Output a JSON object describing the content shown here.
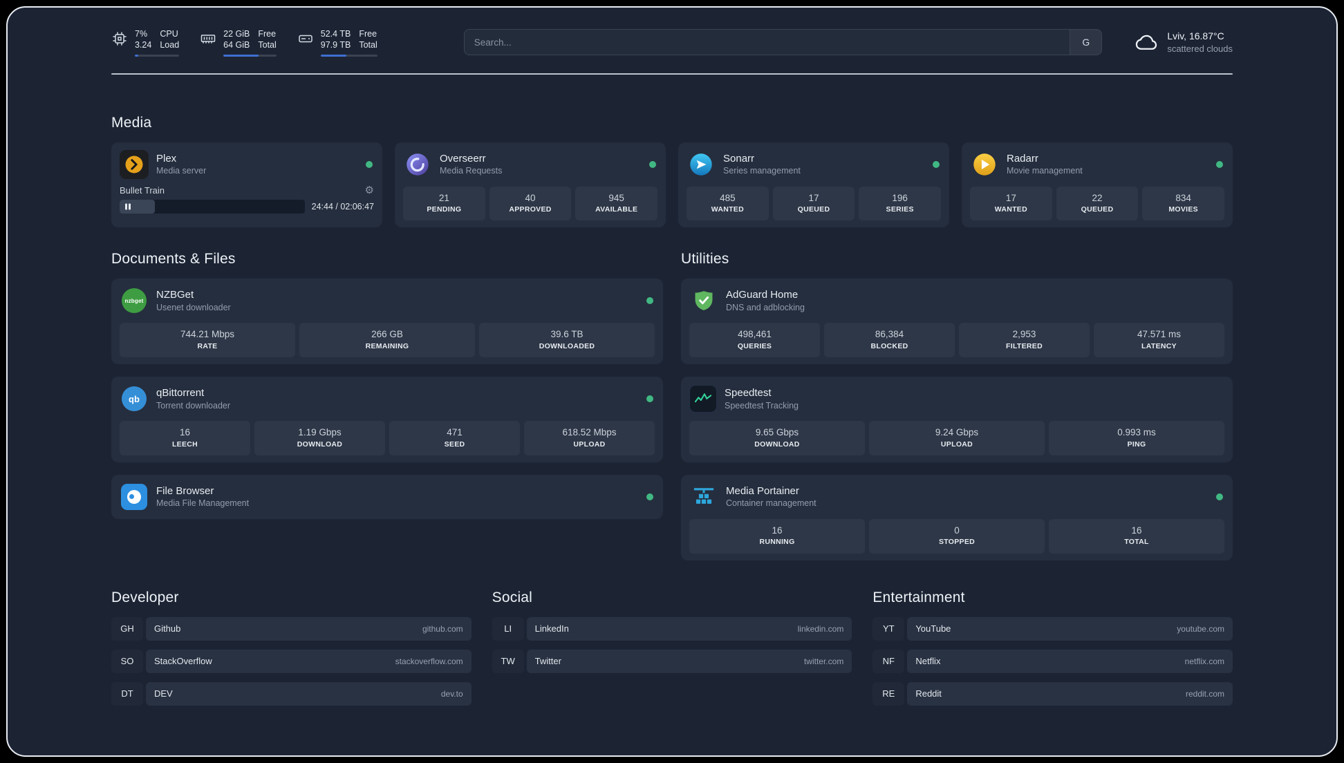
{
  "theme": {
    "background": "#000000",
    "panel_background": "#1c2434",
    "card_background": "#252e3e",
    "stat_background": "#2e3747",
    "accent_blue": "#3f6fd1",
    "status_online": "#41b883",
    "plex_brand": "#e6a11b",
    "text_primary": "#e9edf2",
    "text_secondary": "#929dac"
  },
  "topbar": {
    "resources": [
      {
        "icon": "cpu-icon",
        "value": "7%",
        "value2": "3.24",
        "label": "CPU",
        "label2": "Load",
        "progress_pct": 8
      },
      {
        "icon": "memory-icon",
        "value": "22 GiB",
        "value2": "64 GiB",
        "label": "Free",
        "label2": "Total",
        "progress_pct": 66
      },
      {
        "icon": "disk-icon",
        "value": "52.4 TB",
        "value2": "97.9 TB",
        "label": "Free",
        "label2": "Total",
        "progress_pct": 46
      }
    ],
    "search": {
      "placeholder": "Search...",
      "provider_button": "G"
    },
    "weather": {
      "icon": "cloud-icon",
      "location": "Lviv, 16.87°C",
      "condition": "scattered clouds"
    }
  },
  "sections": {
    "media": {
      "title": "Media",
      "services": [
        {
          "name": "Plex",
          "description": "Media server",
          "icon": "plex-icon",
          "status": "online",
          "now_playing": {
            "title": "Bullet Train",
            "time": "24:44 / 02:06:47",
            "progress_pct": 19
          }
        },
        {
          "name": "Overseerr",
          "description": "Media Requests",
          "icon": "overseerr-icon",
          "status": "online",
          "stats": [
            {
              "value": "21",
              "label": "PENDING"
            },
            {
              "value": "40",
              "label": "APPROVED"
            },
            {
              "value": "945",
              "label": "AVAILABLE"
            }
          ]
        },
        {
          "name": "Sonarr",
          "description": "Series management",
          "icon": "sonarr-icon",
          "status": "online",
          "stats": [
            {
              "value": "485",
              "label": "WANTED"
            },
            {
              "value": "17",
              "label": "QUEUED"
            },
            {
              "value": "196",
              "label": "SERIES"
            }
          ]
        },
        {
          "name": "Radarr",
          "description": "Movie management",
          "icon": "radarr-icon",
          "status": "online",
          "stats": [
            {
              "value": "17",
              "label": "WANTED"
            },
            {
              "value": "22",
              "label": "QUEUED"
            },
            {
              "value": "834",
              "label": "MOVIES"
            }
          ]
        }
      ]
    },
    "documents": {
      "title": "Documents & Files",
      "services": [
        {
          "name": "NZBGet",
          "description": "Usenet downloader",
          "icon": "nzbget-icon",
          "status": "online",
          "stats": [
            {
              "value": "744.21 Mbps",
              "label": "RATE"
            },
            {
              "value": "266 GB",
              "label": "REMAINING"
            },
            {
              "value": "39.6 TB",
              "label": "DOWNLOADED"
            }
          ]
        },
        {
          "name": "qBittorrent",
          "description": "Torrent downloader",
          "icon": "qbittorrent-icon",
          "status": "online",
          "stats": [
            {
              "value": "16",
              "label": "LEECH"
            },
            {
              "value": "1.19 Gbps",
              "label": "DOWNLOAD"
            },
            {
              "value": "471",
              "label": "SEED"
            },
            {
              "value": "618.52 Mbps",
              "label": "UPLOAD"
            }
          ]
        },
        {
          "name": "File Browser",
          "description": "Media File Management",
          "icon": "filebrowser-icon",
          "status": "online",
          "stats": []
        }
      ]
    },
    "utilities": {
      "title": "Utilities",
      "services": [
        {
          "name": "AdGuard Home",
          "description": "DNS and adblocking",
          "icon": "adguard-icon",
          "stats": [
            {
              "value": "498,461",
              "label": "QUERIES"
            },
            {
              "value": "86,384",
              "label": "BLOCKED"
            },
            {
              "value": "2,953",
              "label": "FILTERED"
            },
            {
              "value": "47.571 ms",
              "label": "LATENCY"
            }
          ]
        },
        {
          "name": "Speedtest",
          "description": "Speedtest Tracking",
          "icon": "speedtest-icon",
          "stats": [
            {
              "value": "9.65 Gbps",
              "label": "DOWNLOAD"
            },
            {
              "value": "9.24 Gbps",
              "label": "UPLOAD"
            },
            {
              "value": "0.993 ms",
              "label": "PING"
            }
          ]
        },
        {
          "name": "Media Portainer",
          "description": "Container management",
          "icon": "portainer-icon",
          "status": "online",
          "stats": [
            {
              "value": "16",
              "label": "RUNNING"
            },
            {
              "value": "0",
              "label": "STOPPED"
            },
            {
              "value": "16",
              "label": "TOTAL"
            }
          ]
        }
      ]
    }
  },
  "bookmarks": [
    {
      "title": "Developer",
      "items": [
        {
          "abbr": "GH",
          "name": "Github",
          "domain": "github.com"
        },
        {
          "abbr": "SO",
          "name": "StackOverflow",
          "domain": "stackoverflow.com"
        },
        {
          "abbr": "DT",
          "name": "DEV",
          "domain": "dev.to"
        }
      ]
    },
    {
      "title": "Social",
      "items": [
        {
          "abbr": "LI",
          "name": "LinkedIn",
          "domain": "linkedin.com"
        },
        {
          "abbr": "TW",
          "name": "Twitter",
          "domain": "twitter.com"
        }
      ]
    },
    {
      "title": "Entertainment",
      "items": [
        {
          "abbr": "YT",
          "name": "YouTube",
          "domain": "youtube.com"
        },
        {
          "abbr": "NF",
          "name": "Netflix",
          "domain": "netflix.com"
        },
        {
          "abbr": "RE",
          "name": "Reddit",
          "domain": "reddit.com"
        }
      ]
    }
  ],
  "icons": {
    "gear": "⚙",
    "pause": "pause-icon"
  }
}
